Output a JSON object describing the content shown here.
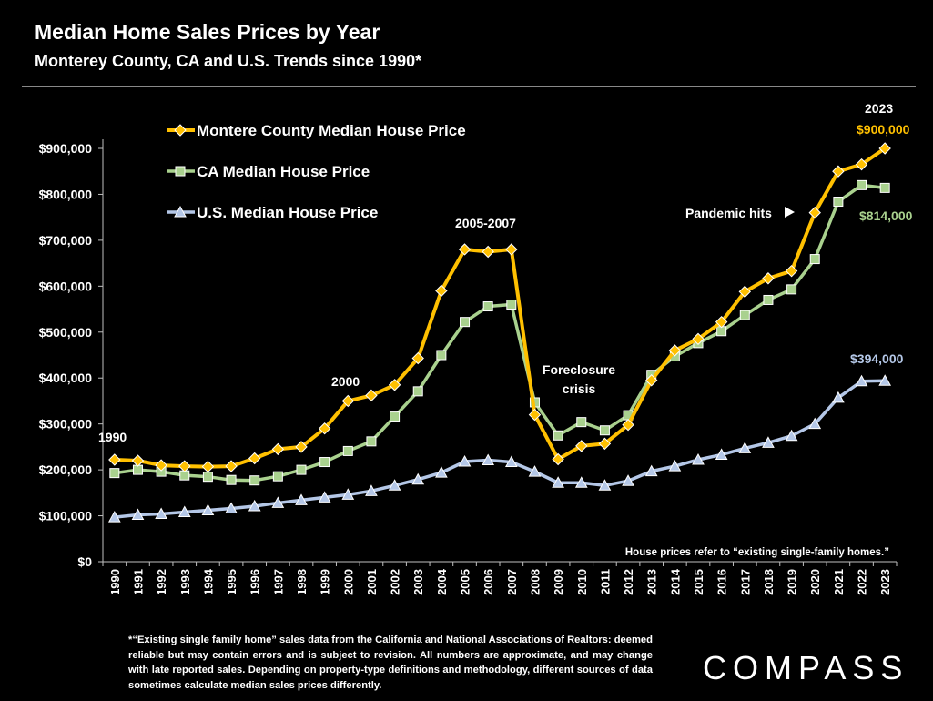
{
  "header": {
    "title": "Median Home Sales Prices by Year",
    "subtitle": "Monterey County, CA and U.S. Trends since 1990*"
  },
  "chart_data": {
    "type": "line",
    "title": "Median Home Sales Prices by Year",
    "x": [
      "1990",
      "1991",
      "1992",
      "1993",
      "1994",
      "1995",
      "1996",
      "1997",
      "1998",
      "1999",
      "2000",
      "2001",
      "2002",
      "2003",
      "2004",
      "2005",
      "2006",
      "2007",
      "2008",
      "2009",
      "2010",
      "2011",
      "2012",
      "2013",
      "2014",
      "2015",
      "2016",
      "2017",
      "2018",
      "2019",
      "2020",
      "2021",
      "2022",
      "2023"
    ],
    "yticks": [
      "$0",
      "$100,000",
      "$200,000",
      "$300,000",
      "$400,000",
      "$500,000",
      "$600,000",
      "$700,000",
      "$800,000",
      "$900,000"
    ],
    "ylim": [
      0,
      900000
    ],
    "series": [
      {
        "name": "Montere County Median House Price",
        "color": "#FFC000",
        "marker": "diamond",
        "values": [
          222000,
          220000,
          210000,
          208000,
          207000,
          208000,
          225000,
          245000,
          250000,
          290000,
          350000,
          362000,
          385000,
          443000,
          590000,
          680000,
          675000,
          680000,
          320000,
          223000,
          252000,
          257000,
          298000,
          395000,
          460000,
          485000,
          522000,
          588000,
          617000,
          633000,
          760000,
          850000,
          865000,
          900000
        ]
      },
      {
        "name": "CA Median House Price",
        "color": "#A9D18E",
        "marker": "square",
        "values": [
          193000,
          200000,
          196000,
          188000,
          185000,
          178000,
          177000,
          186000,
          200000,
          217000,
          241000,
          262000,
          316000,
          371000,
          450000,
          522000,
          556000,
          560000,
          347000,
          275000,
          304000,
          286000,
          319000,
          407000,
          447000,
          476000,
          502000,
          537000,
          570000,
          593000,
          659000,
          784000,
          820000,
          814000
        ]
      },
      {
        "name": "U.S. Median House Price",
        "color": "#B4C7E7",
        "marker": "triangle",
        "values": [
          97000,
          102000,
          104000,
          108000,
          112000,
          116000,
          121000,
          128000,
          134000,
          140000,
          146000,
          154000,
          166000,
          179000,
          194000,
          218000,
          221000,
          217000,
          196000,
          172000,
          172000,
          166000,
          176000,
          197000,
          208000,
          222000,
          233000,
          247000,
          259000,
          274000,
          300000,
          357000,
          393000,
          394000
        ]
      }
    ],
    "annotations": {
      "a1990": "1990",
      "a2000": "2000",
      "a2005": "2005-2007",
      "a2023": "2023",
      "foreclosure1": "Foreclosure",
      "foreclosure2": "crisis",
      "pandemic": "Pandemic hits",
      "v900": "$900,000",
      "v814": "$814,000",
      "v394": "$394,000",
      "note": "House prices refer to “existing single-family homes.”"
    }
  },
  "footnote": "*“Existing single family home” sales data from the California and National Associations of Realtors: deemed reliable but may contain errors and is subject to revision. All numbers are approximate, and may change with late reported sales. Depending on property-type definitions and methodology, different sources of data sometimes calculate median sales prices differently.",
  "logo": "COMPASS"
}
